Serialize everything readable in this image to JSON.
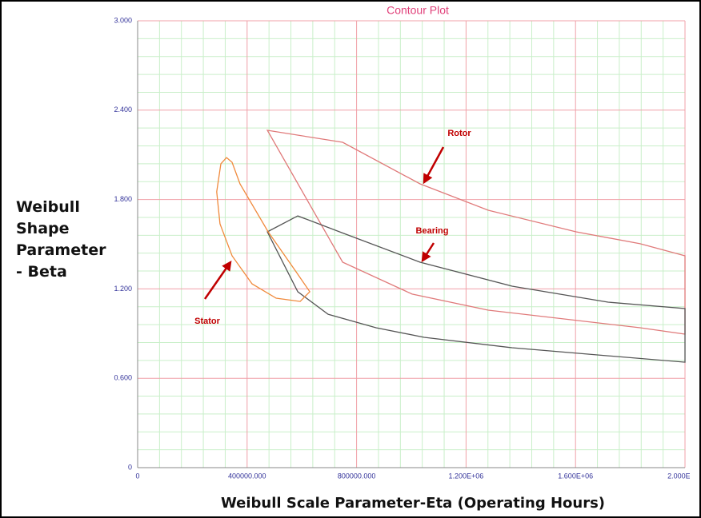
{
  "chart_data": {
    "type": "contour",
    "title": "Contour Plot",
    "x_label": "Weibull Scale Parameter-Eta (Operating Hours)",
    "y_label": "Weibull Shape Parameter - Beta",
    "xlim": [
      0,
      2000000
    ],
    "ylim": [
      0,
      3
    ],
    "xticks": [
      0,
      {
        "value": 400000,
        "label": "400000.000"
      },
      {
        "value": 800000,
        "label": "800000.000"
      },
      {
        "value": 1200000,
        "label": "1.200E+06"
      },
      {
        "value": 1600000,
        "label": "1.600E+06"
      },
      {
        "value": 2000000,
        "label": "2.000E+06"
      }
    ],
    "yticks": [
      0,
      {
        "value": 0.6,
        "label": "0.600"
      },
      {
        "value": 1.2,
        "label": "1.200"
      },
      {
        "value": 1.8,
        "label": "1.800"
      },
      {
        "value": 2.4,
        "label": "2.400"
      },
      {
        "value": 3,
        "label": "3.000"
      }
    ],
    "grid": true,
    "minor_divisions": 5,
    "series": [
      {
        "name": "Rotor",
        "color": "#e07a7a",
        "x": [
          474000,
          749000,
          1032000,
          1281000,
          1602000,
          1836000,
          2000000,
          2000000,
          1836000,
          1281000,
          1003000,
          749000
        ],
        "values": [
          2.265,
          2.184,
          1.905,
          1.728,
          1.583,
          1.503,
          1.422,
          0.896,
          0.939,
          1.057,
          1.165,
          1.379
        ]
      },
      {
        "name": "Bearing",
        "color": "#555555",
        "x": [
          474000,
          585000,
          754000,
          1032000,
          1368000,
          1719000,
          2000000,
          2000000,
          1719000,
          1368000,
          1047000,
          871000,
          696000,
          585000
        ],
        "values": [
          1.583,
          1.69,
          1.572,
          1.379,
          1.218,
          1.111,
          1.068,
          0.708,
          0.751,
          0.805,
          0.875,
          0.939,
          1.03,
          1.181
        ]
      },
      {
        "name": "Stator",
        "color": "#f08a3c",
        "x": [
          325000,
          304000,
          289000,
          301000,
          345000,
          418000,
          506000,
          594000,
          629000,
          579000,
          477000,
          374000,
          345000
        ],
        "values": [
          2.082,
          2.04,
          1.852,
          1.637,
          1.422,
          1.234,
          1.138,
          1.116,
          1.181,
          1.315,
          1.583,
          1.905,
          2.05
        ]
      }
    ]
  }
}
